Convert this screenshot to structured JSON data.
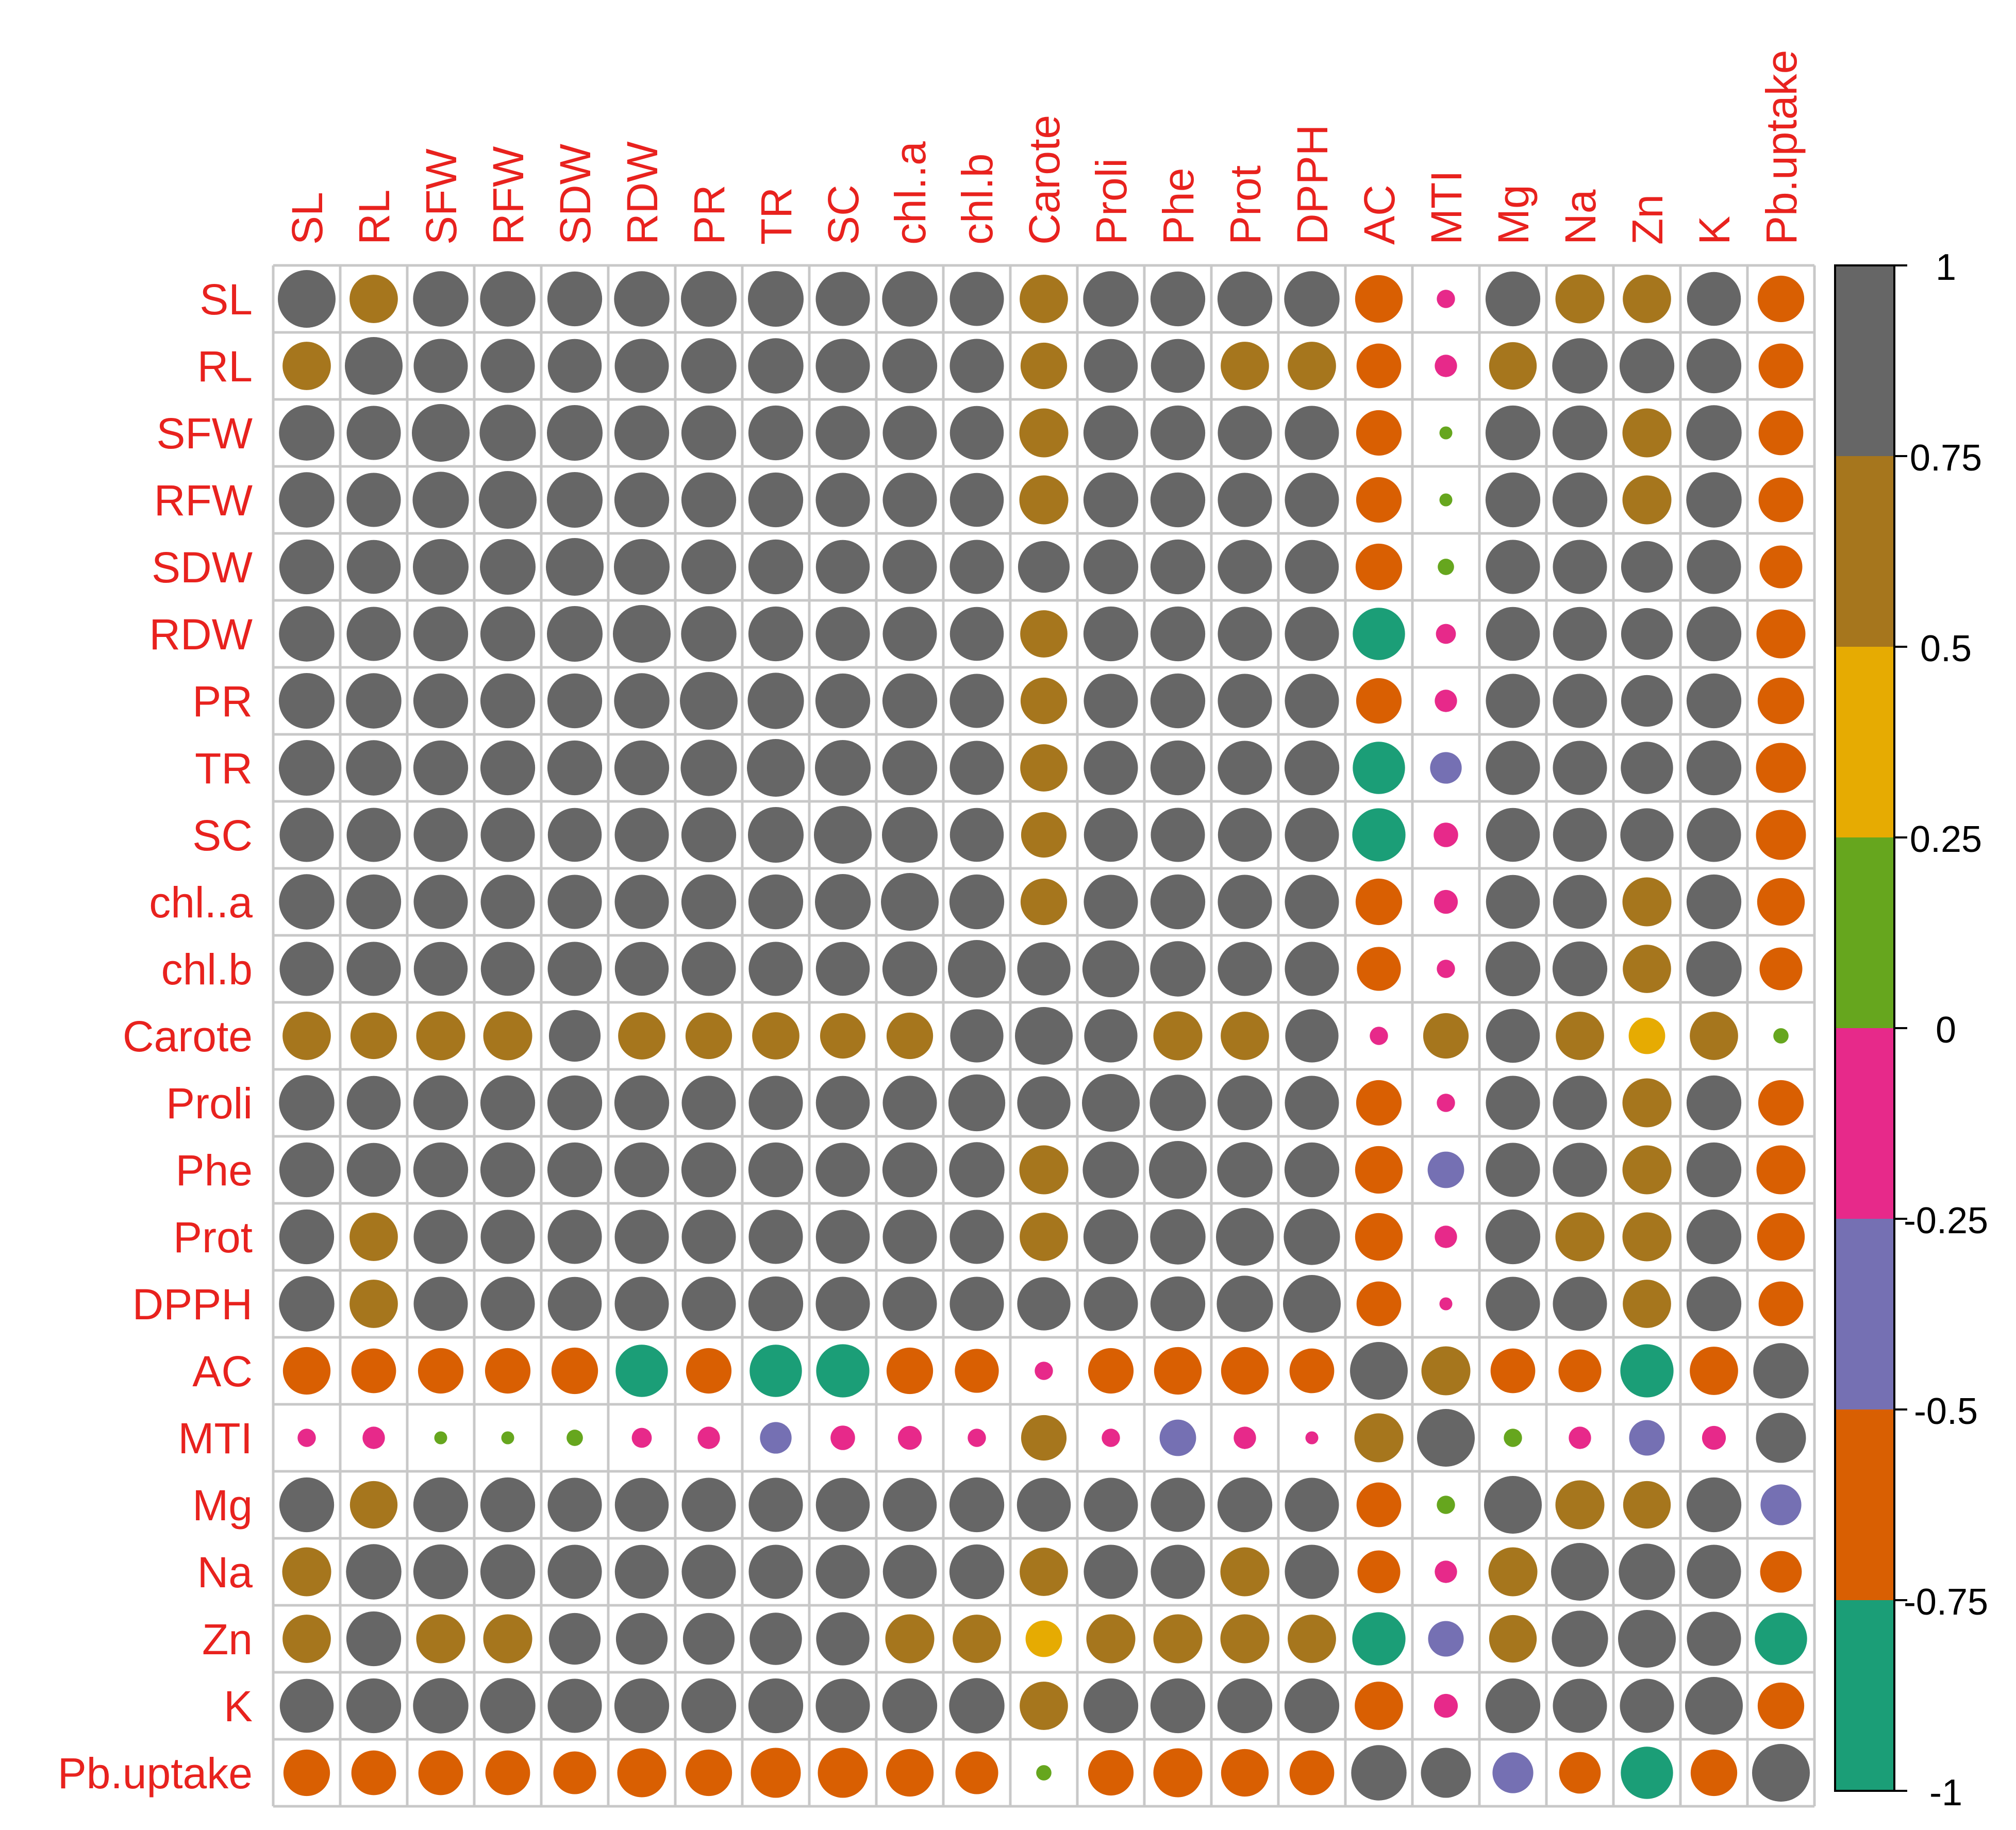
{
  "chart_data": {
    "type": "heatmap",
    "title": "",
    "variables": [
      "SL",
      "RL",
      "SFW",
      "RFW",
      "SDW",
      "RDW",
      "PR",
      "TR",
      "SC",
      "chl..a",
      "chl.b",
      "Carote",
      "Proli",
      "Phe",
      "Prot",
      "DPPH",
      "AC",
      "MTI",
      "Mg",
      "Na",
      "Zn",
      "K",
      "Pb.uptake"
    ],
    "matrix": [
      [
        1,
        0.7,
        0.92,
        0.92,
        0.9,
        0.92,
        0.93,
        0.93,
        0.88,
        0.92,
        0.88,
        0.7,
        0.92,
        0.9,
        0.9,
        0.92,
        -0.68,
        -0.1,
        0.9,
        0.72,
        0.7,
        0.87,
        -0.65
      ],
      [
        0.7,
        1,
        0.88,
        0.88,
        0.87,
        0.88,
        0.92,
        0.92,
        0.88,
        0.9,
        0.88,
        0.65,
        0.87,
        0.87,
        0.7,
        0.7,
        -0.6,
        -0.15,
        0.68,
        0.92,
        0.9,
        0.9,
        -0.6
      ],
      [
        0.92,
        0.88,
        1,
        0.95,
        0.93,
        0.9,
        0.9,
        0.9,
        0.88,
        0.88,
        0.87,
        0.72,
        0.9,
        0.9,
        0.88,
        0.88,
        -0.62,
        0.05,
        0.9,
        0.9,
        0.72,
        0.92,
        -0.6
      ],
      [
        0.92,
        0.88,
        0.95,
        1,
        0.93,
        0.9,
        0.9,
        0.9,
        0.88,
        0.88,
        0.87,
        0.72,
        0.9,
        0.9,
        0.88,
        0.88,
        -0.62,
        0.05,
        0.9,
        0.9,
        0.72,
        0.92,
        -0.6
      ],
      [
        0.9,
        0.87,
        0.93,
        0.93,
        1,
        0.93,
        0.9,
        0.9,
        0.87,
        0.88,
        0.88,
        0.8,
        0.9,
        0.9,
        0.88,
        0.87,
        -0.65,
        0.08,
        0.88,
        0.88,
        0.8,
        0.88,
        -0.55
      ],
      [
        0.92,
        0.88,
        0.9,
        0.9,
        0.93,
        1,
        0.92,
        0.9,
        0.88,
        0.88,
        0.87,
        0.67,
        0.9,
        0.9,
        0.88,
        0.88,
        -0.82,
        -0.12,
        0.87,
        0.87,
        0.8,
        0.9,
        -0.72
      ],
      [
        0.93,
        0.92,
        0.9,
        0.9,
        0.9,
        0.92,
        1,
        0.95,
        0.9,
        0.9,
        0.88,
        0.65,
        0.88,
        0.9,
        0.88,
        0.88,
        -0.62,
        -0.15,
        0.88,
        0.88,
        0.8,
        0.9,
        -0.65
      ],
      [
        0.93,
        0.92,
        0.9,
        0.9,
        0.9,
        0.9,
        0.95,
        1,
        0.93,
        0.9,
        0.88,
        0.67,
        0.88,
        0.9,
        0.88,
        0.9,
        -0.82,
        -0.3,
        0.88,
        0.88,
        0.82,
        0.9,
        -0.75
      ],
      [
        0.88,
        0.88,
        0.88,
        0.88,
        0.87,
        0.88,
        0.9,
        0.93,
        1,
        0.93,
        0.87,
        0.62,
        0.87,
        0.88,
        0.87,
        0.88,
        -0.85,
        -0.18,
        0.87,
        0.87,
        0.85,
        0.88,
        -0.75
      ],
      [
        0.92,
        0.9,
        0.88,
        0.88,
        0.88,
        0.88,
        0.9,
        0.9,
        0.93,
        1,
        0.9,
        0.65,
        0.88,
        0.9,
        0.88,
        0.88,
        -0.65,
        -0.17,
        0.87,
        0.87,
        0.72,
        0.9,
        -0.68
      ],
      [
        0.88,
        0.88,
        0.87,
        0.87,
        0.88,
        0.87,
        0.88,
        0.88,
        0.87,
        0.9,
        1,
        0.85,
        0.97,
        0.92,
        0.88,
        0.88,
        -0.58,
        -0.1,
        0.9,
        0.9,
        0.7,
        0.92,
        -0.55
      ],
      [
        0.7,
        0.65,
        0.72,
        0.72,
        0.8,
        0.67,
        0.65,
        0.67,
        0.62,
        0.65,
        0.85,
        1,
        0.85,
        0.72,
        0.7,
        0.85,
        -0.1,
        0.62,
        0.87,
        0.7,
        0.4,
        0.7,
        0.07
      ],
      [
        0.92,
        0.87,
        0.9,
        0.9,
        0.9,
        0.9,
        0.88,
        0.88,
        0.87,
        0.88,
        0.97,
        0.85,
        1,
        0.95,
        0.9,
        0.88,
        -0.62,
        -0.1,
        0.88,
        0.88,
        0.72,
        0.9,
        -0.62
      ],
      [
        0.9,
        0.87,
        0.9,
        0.9,
        0.9,
        0.9,
        0.9,
        0.9,
        0.88,
        0.9,
        0.92,
        0.72,
        0.95,
        1,
        0.92,
        0.9,
        -0.68,
        -0.4,
        0.88,
        0.88,
        0.72,
        0.9,
        -0.72
      ],
      [
        0.9,
        0.7,
        0.88,
        0.88,
        0.88,
        0.88,
        0.88,
        0.88,
        0.87,
        0.88,
        0.88,
        0.7,
        0.9,
        0.92,
        1,
        0.95,
        -0.68,
        -0.15,
        0.9,
        0.72,
        0.72,
        0.9,
        -0.68
      ],
      [
        0.92,
        0.7,
        0.88,
        0.88,
        0.87,
        0.88,
        0.88,
        0.9,
        0.88,
        0.88,
        0.88,
        0.85,
        0.88,
        0.9,
        0.95,
        1,
        -0.6,
        -0.05,
        0.88,
        0.88,
        0.7,
        0.9,
        -0.6
      ],
      [
        -0.68,
        -0.6,
        -0.62,
        -0.62,
        -0.65,
        -0.82,
        -0.62,
        -0.82,
        -0.85,
        -0.65,
        -0.58,
        -0.1,
        -0.62,
        -0.68,
        -0.68,
        -0.6,
        1,
        0.72,
        -0.6,
        -0.55,
        -0.85,
        -0.7,
        0.92
      ],
      [
        -0.1,
        -0.15,
        0.05,
        0.05,
        0.08,
        -0.12,
        -0.15,
        -0.3,
        -0.18,
        -0.17,
        -0.1,
        0.62,
        -0.1,
        -0.4,
        -0.15,
        -0.05,
        0.72,
        1,
        0.1,
        -0.15,
        -0.38,
        -0.17,
        0.75
      ],
      [
        0.9,
        0.68,
        0.9,
        0.9,
        0.88,
        0.87,
        0.88,
        0.88,
        0.87,
        0.87,
        0.9,
        0.87,
        0.88,
        0.88,
        0.9,
        0.88,
        -0.6,
        0.1,
        1,
        0.72,
        0.68,
        0.9,
        -0.5
      ],
      [
        0.72,
        0.92,
        0.9,
        0.9,
        0.88,
        0.87,
        0.88,
        0.88,
        0.87,
        0.87,
        0.9,
        0.7,
        0.88,
        0.88,
        0.72,
        0.88,
        -0.55,
        -0.15,
        0.72,
        1,
        0.95,
        0.88,
        -0.52
      ],
      [
        0.7,
        0.9,
        0.72,
        0.72,
        0.8,
        0.8,
        0.8,
        0.82,
        0.85,
        0.72,
        0.7,
        0.4,
        0.72,
        0.72,
        0.72,
        0.7,
        -0.85,
        -0.38,
        0.68,
        0.95,
        1,
        0.88,
        -0.82
      ],
      [
        0.87,
        0.9,
        0.92,
        0.92,
        0.88,
        0.9,
        0.9,
        0.9,
        0.88,
        0.9,
        0.92,
        0.7,
        0.9,
        0.9,
        0.9,
        0.9,
        -0.7,
        -0.17,
        0.9,
        0.88,
        0.88,
        1,
        -0.65
      ],
      [
        -0.65,
        -0.6,
        -0.6,
        -0.6,
        -0.55,
        -0.72,
        -0.65,
        -0.75,
        -0.75,
        -0.68,
        -0.55,
        0.07,
        -0.62,
        -0.72,
        -0.68,
        -0.6,
        0.92,
        0.75,
        -0.5,
        -0.52,
        -0.82,
        -0.65,
        1
      ]
    ],
    "legend": {
      "ticks": [
        "1",
        "0.75",
        "0.5",
        "0.25",
        "0",
        "-0.25",
        "-0.5",
        "-0.75",
        "-1"
      ],
      "range": [
        -1,
        1
      ],
      "placement": "right",
      "bins": [
        {
          "min": -1.0,
          "max": -0.75,
          "color": "#1B9E77"
        },
        {
          "min": -0.75,
          "max": -0.5,
          "color": "#D95F02"
        },
        {
          "min": -0.5,
          "max": -0.25,
          "color": "#7570B3"
        },
        {
          "min": -0.25,
          "max": 0.0,
          "color": "#E7298A"
        },
        {
          "min": 0.0,
          "max": 0.25,
          "color": "#66A61E"
        },
        {
          "min": 0.25,
          "max": 0.5,
          "color": "#E6AB02"
        },
        {
          "min": 0.5,
          "max": 0.75,
          "color": "#A6761D"
        },
        {
          "min": 0.75,
          "max": 1.0,
          "color": "#666666"
        }
      ]
    },
    "label_color": "#E8221E",
    "grid_color": "#C8C8C8"
  }
}
